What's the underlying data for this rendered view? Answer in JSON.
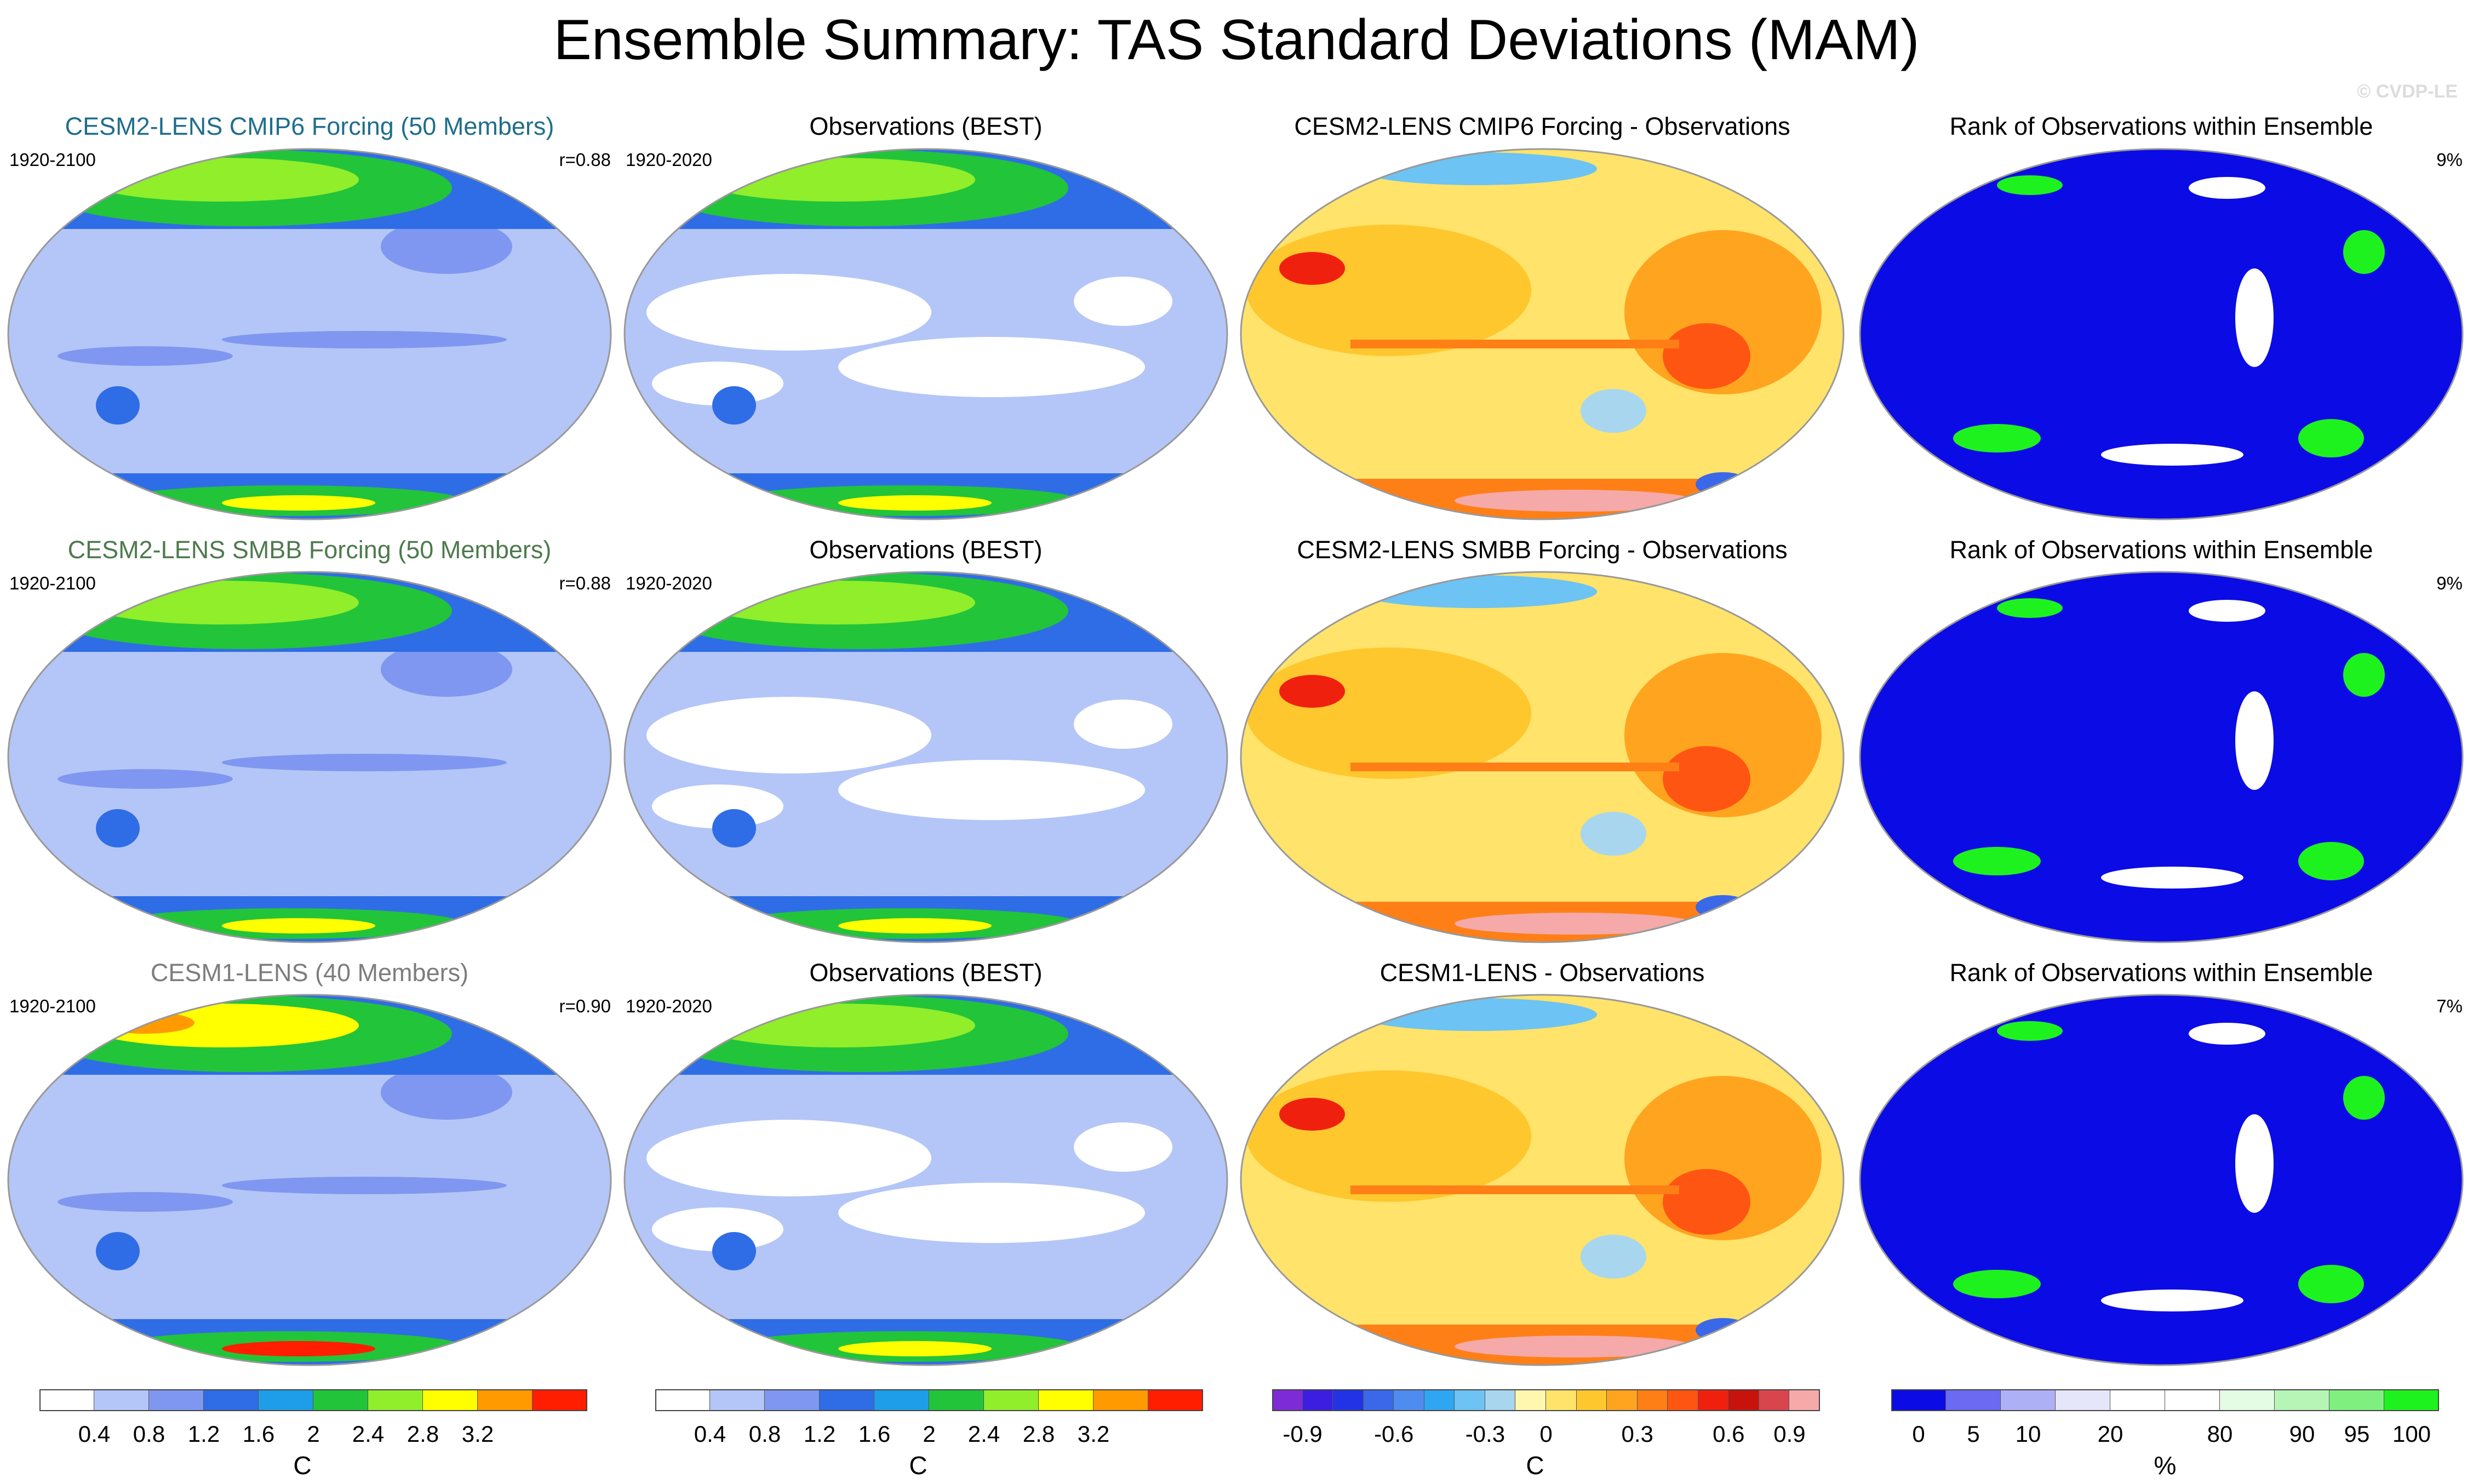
{
  "title": "Ensemble Summary: TAS Standard Deviations (MAM)",
  "watermark": "© CVDP-LE",
  "panels": [
    {
      "title": "CESM2-LENS CMIP6 Forcing (50 Members)",
      "left_label": "1920-2100",
      "right_label": "r=0.88",
      "kind": "sd_model"
    },
    {
      "title": "Observations (BEST)",
      "left_label": "1920-2020",
      "right_label": "",
      "kind": "sd_obs"
    },
    {
      "title": "CESM2-LENS CMIP6 Forcing - Observations",
      "left_label": "",
      "right_label": "",
      "kind": "diff"
    },
    {
      "title": "Rank of Observations within Ensemble",
      "left_label": "",
      "right_label": "9%",
      "kind": "rank"
    },
    {
      "title": "CESM2-LENS SMBB Forcing (50 Members)",
      "left_label": "1920-2100",
      "right_label": "r=0.88",
      "kind": "sd_model"
    },
    {
      "title": "Observations (BEST)",
      "left_label": "1920-2020",
      "right_label": "",
      "kind": "sd_obs"
    },
    {
      "title": "CESM2-LENS SMBB Forcing - Observations",
      "left_label": "",
      "right_label": "",
      "kind": "diff"
    },
    {
      "title": "Rank of Observations within Ensemble",
      "left_label": "",
      "right_label": "9%",
      "kind": "rank"
    },
    {
      "title": "CESM1-LENS (40 Members)",
      "left_label": "1920-2100",
      "right_label": "r=0.90",
      "kind": "sd_model"
    },
    {
      "title": "Observations (BEST)",
      "left_label": "1920-2020",
      "right_label": "",
      "kind": "sd_obs"
    },
    {
      "title": "CESM1-LENS - Observations",
      "left_label": "",
      "right_label": "",
      "kind": "diff"
    },
    {
      "title": "Rank of Observations within Ensemble",
      "left_label": "",
      "right_label": "7%",
      "kind": "rank"
    }
  ],
  "colorbars": [
    {
      "unit": "C",
      "colors": [
        "#ffffff",
        "#b4c6f7",
        "#7f97f0",
        "#2f6de6",
        "#1e9ee8",
        "#22c43a",
        "#90ee2b",
        "#ffff00",
        "#ff9a00",
        "#ff1e00"
      ],
      "ticks": [
        "0.4",
        "0.8",
        "1.2",
        "1.6",
        "2",
        "2.4",
        "2.8",
        "3.2"
      ]
    },
    {
      "unit": "C",
      "colors": [
        "#ffffff",
        "#b4c6f7",
        "#7f97f0",
        "#2f6de6",
        "#1e9ee8",
        "#22c43a",
        "#90ee2b",
        "#ffff00",
        "#ff9a00",
        "#ff1e00"
      ],
      "ticks": [
        "0.4",
        "0.8",
        "1.2",
        "1.6",
        "2",
        "2.4",
        "2.8",
        "3.2"
      ]
    },
    {
      "unit": "C",
      "colors": [
        "#7d2bd6",
        "#3c1ee0",
        "#2233e6",
        "#3a68e8",
        "#4f8cf0",
        "#2fa6f2",
        "#6dc3f3",
        "#a8d6ee",
        "#fff7b0",
        "#ffe36a",
        "#ffc72e",
        "#ffa41f",
        "#ff7f17",
        "#ff5512",
        "#f0200e",
        "#c8130c",
        "#d9454d",
        "#f5a9a9"
      ],
      "ticks": [
        "-0.9",
        "-0.6",
        "-0.3",
        "0",
        "0.3",
        "0.6",
        "0.9"
      ]
    },
    {
      "unit": "%",
      "colors": [
        "#0b0be6",
        "#6a6af2",
        "#aeb0f5",
        "#e6e6fb",
        "#ffffff",
        "#ffffff",
        "#e4fbe4",
        "#b7f5b7",
        "#7ff07f",
        "#1ef21e"
      ],
      "ticks": [
        "0",
        "5",
        "10",
        "20",
        "80",
        "90",
        "95",
        "100"
      ]
    }
  ]
}
